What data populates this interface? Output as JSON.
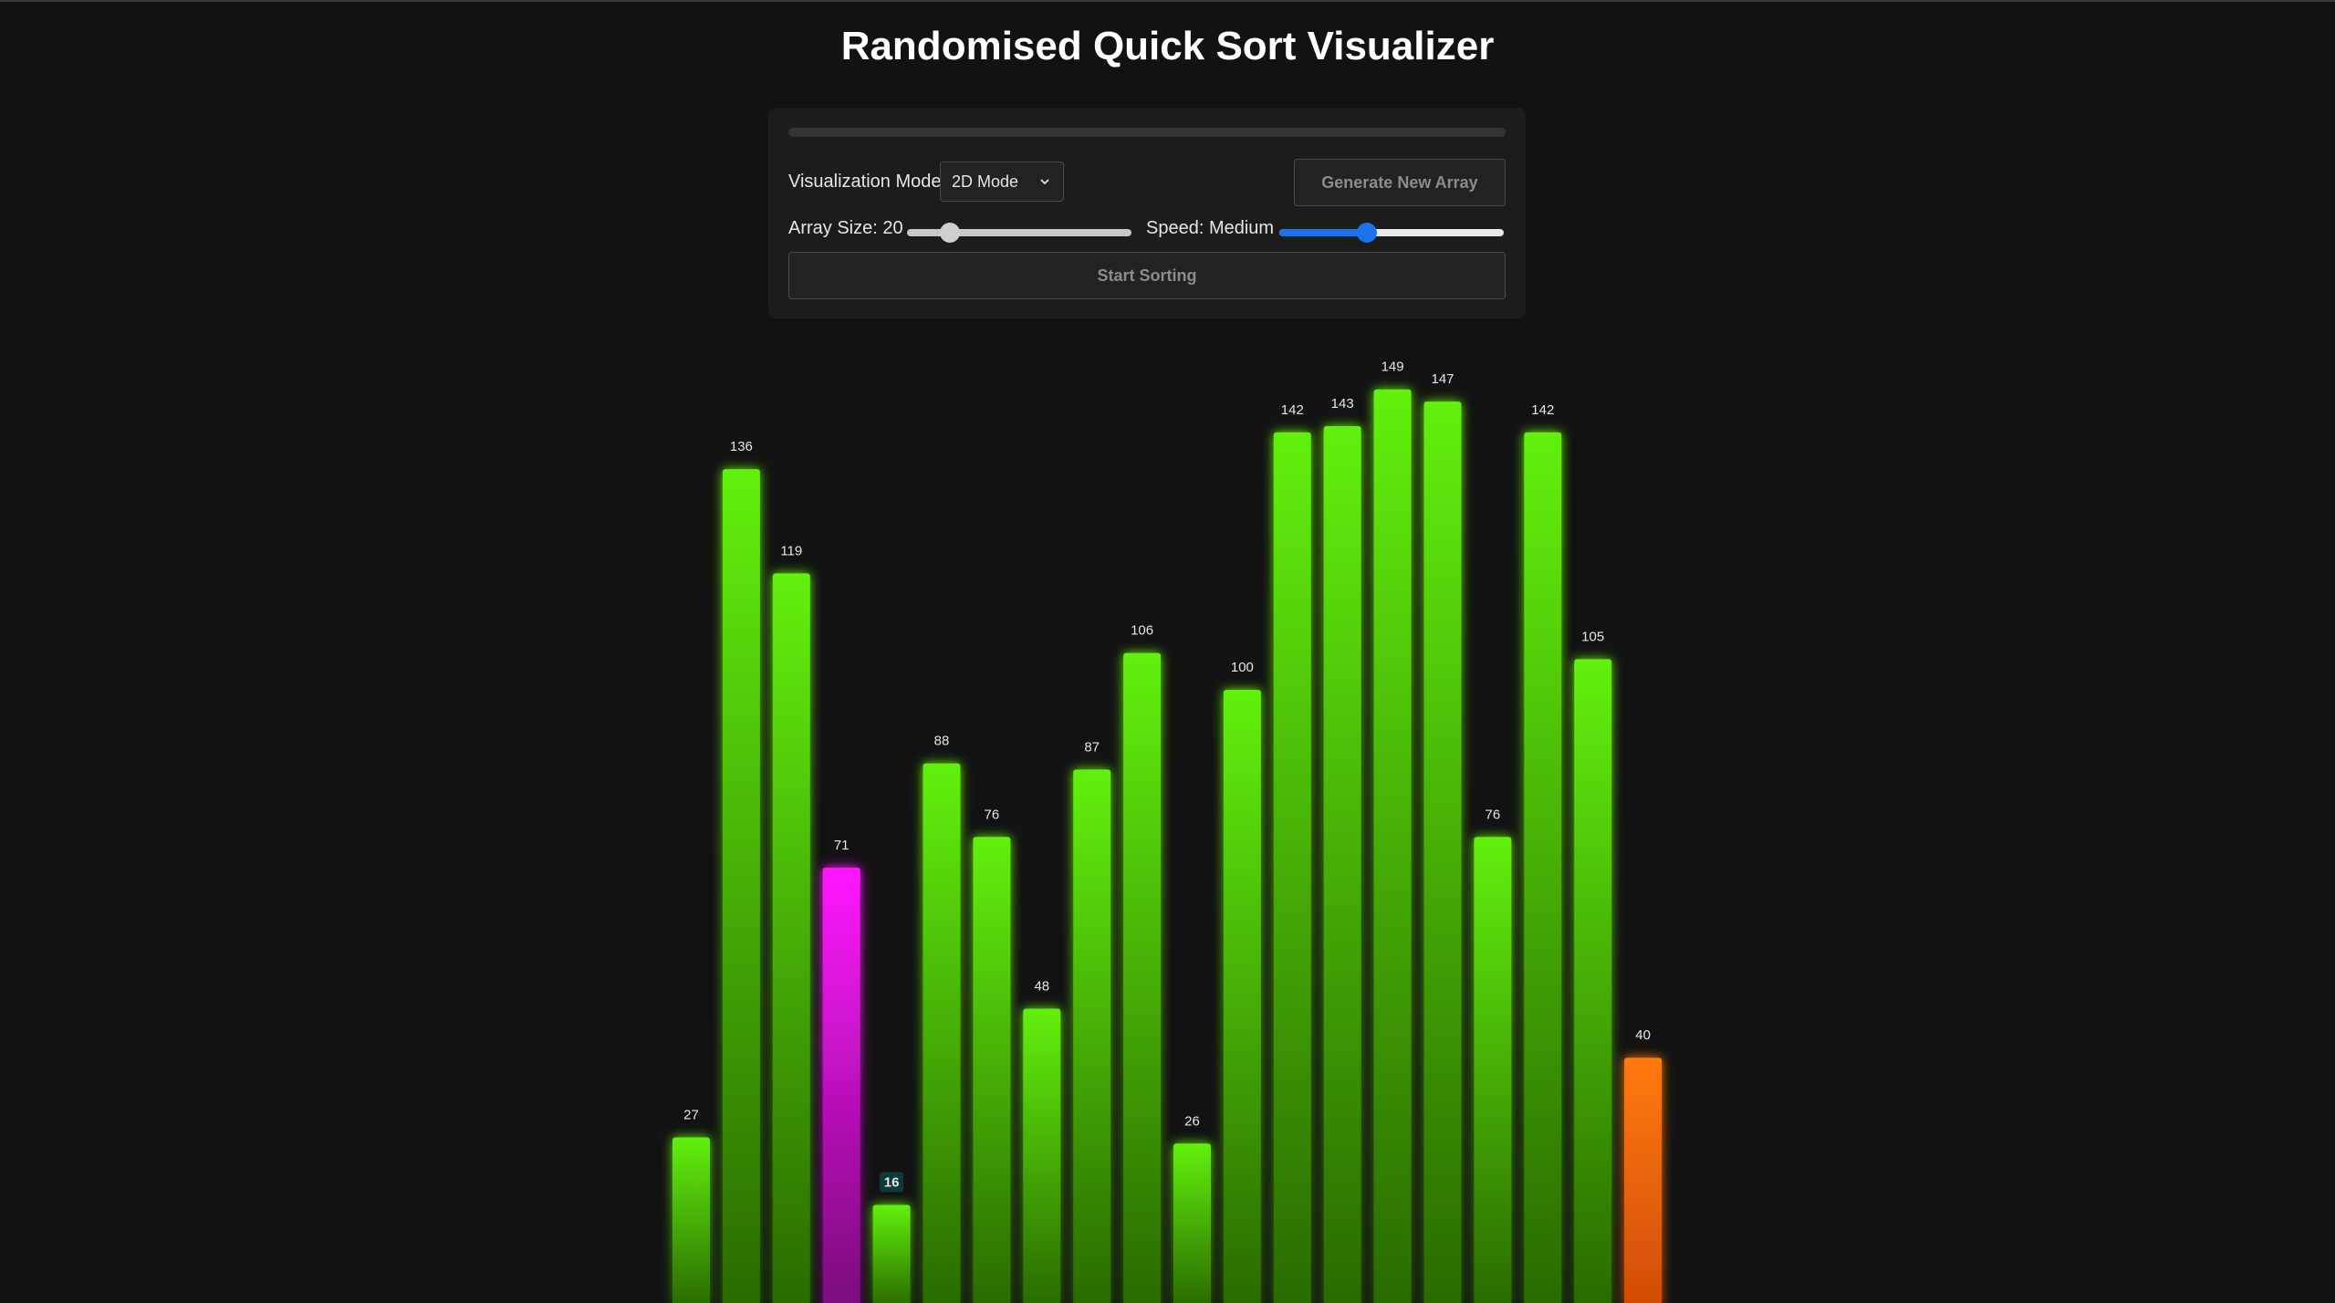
{
  "app": {
    "title": "Randomised Quick Sort Visualizer"
  },
  "controls": {
    "progress_fraction": 0,
    "mode_label": "Visualization Mode",
    "mode_value": "2D Mode",
    "generate_label": "Generate New Array",
    "array_size_label": "Array Size: 20",
    "array_size_value": 20,
    "speed_label": "Speed: Medium",
    "speed_fraction": 0.39,
    "array_size_fraction": 0.19,
    "start_label": "Start Sorting"
  },
  "colors": {
    "default_top": "#62f007",
    "default_bottom": "#2a6a06",
    "pivot_top": "#ff18ff",
    "pivot_bottom": "#7a0a7a",
    "compare_top": "#ff7a10",
    "compare_bottom": "#d24b05",
    "accent": "#1a73e8"
  },
  "chart_data": {
    "type": "bar",
    "values": [
      27,
      136,
      119,
      71,
      16,
      88,
      76,
      48,
      87,
      106,
      26,
      100,
      142,
      143,
      149,
      147,
      76,
      142,
      105,
      40
    ],
    "labels": [
      "27",
      "136",
      "119",
      "71",
      "16",
      "88",
      "76",
      "48",
      "87",
      "106",
      "26",
      "100",
      "142",
      "143",
      "149",
      "147",
      "76",
      "142",
      "105",
      "40"
    ],
    "states": [
      "default",
      "default",
      "default",
      "pivot",
      "highlight",
      "default",
      "default",
      "default",
      "default",
      "default",
      "default",
      "default",
      "default",
      "default",
      "default",
      "default",
      "default",
      "default",
      "default",
      "compare"
    ],
    "ylim": [
      0,
      150
    ]
  }
}
